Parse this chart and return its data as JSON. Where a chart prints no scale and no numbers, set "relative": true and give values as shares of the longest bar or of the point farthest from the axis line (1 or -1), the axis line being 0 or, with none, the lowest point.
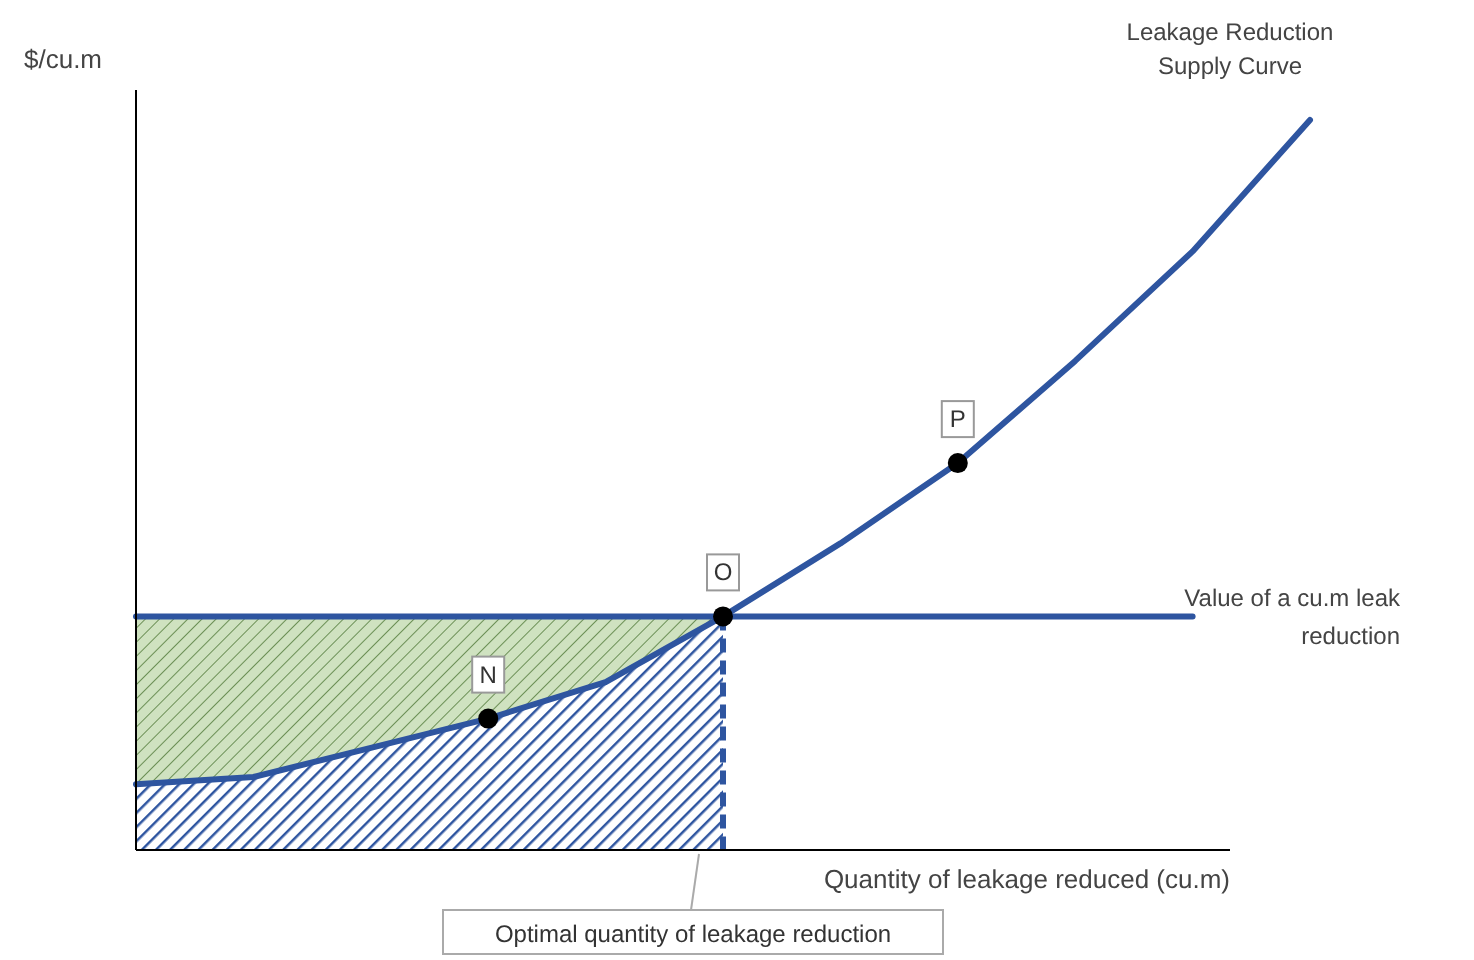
{
  "chart_data": {
    "type": "line",
    "relative": true,
    "ylabel": "$/cu.m",
    "xlabel": "Quantity of leakage reduced (cu.m)",
    "categories": [
      null,
      null,
      null,
      null,
      null,
      null,
      null,
      null,
      null,
      null,
      null
    ],
    "series": [
      {
        "name": "Value of a cu.m leak reduction",
        "color": "#2e55a0",
        "values": [
          0.32,
          0.32,
          0.32,
          0.32,
          0.32,
          0.32,
          0.32,
          0.32,
          0.32,
          0.32,
          null
        ],
        "lower": [
          0.09,
          0.1,
          0.14,
          0.18,
          0.23,
          0.32,
          null,
          null,
          null,
          null,
          null
        ],
        "upper": [
          0.32,
          0.32,
          0.32,
          0.32,
          0.32,
          0.32,
          null,
          null,
          null,
          null,
          null
        ]
      },
      {
        "name": "Leakage Reduction Supply Curve",
        "color": "#2e55a0",
        "values": [
          0.09,
          0.1,
          0.14,
          0.18,
          0.23,
          0.32,
          0.42,
          0.53,
          0.67,
          0.82,
          1
        ],
        "lower": [
          0,
          0,
          0,
          0,
          0,
          0,
          null,
          null,
          null,
          null,
          null
        ],
        "upper": [
          0.09,
          0.1,
          0.14,
          0.18,
          0.23,
          0.32,
          null,
          null,
          null,
          null,
          null
        ]
      }
    ],
    "annotations": [
      {
        "text": "N",
        "y": 0.18
      },
      {
        "text": "O",
        "y": 0.32
      },
      {
        "text": "P",
        "y": 0.53
      }
    ],
    "ref_lines": [
      {
        "axis": "x",
        "label": "Optimal quantity of leakage reduction",
        "color": "#2e55a0",
        "line_style": "dashed"
      }
    ]
  }
}
